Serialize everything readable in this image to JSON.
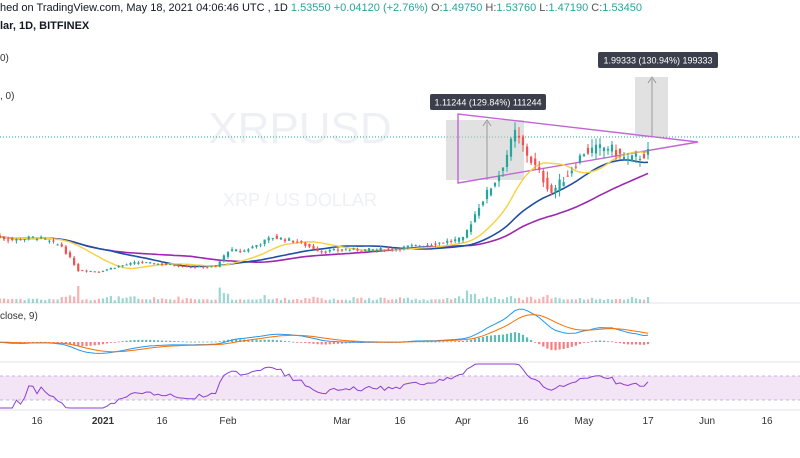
{
  "header": {
    "published": "hed on TradingView.com, May 18, 2021 04:06:46 UTC",
    "ohlc": {
      "close_value": "1.53550",
      "change": "+0.04120 (+2.76%)",
      "o_label": "O:",
      "o_value": "1.49750",
      "h_label": "H:",
      "h_value": "1.53760",
      "l_label": "L:",
      "l_value": "1.47190",
      "c_label": "C:",
      "c_value": "1.53450"
    },
    "symbol_line": "lar, 1D, BITFINEX"
  },
  "indicator_labels": {
    "ma1": "0)",
    "ma2": ", 0)",
    "macd": "close, 9)"
  },
  "watermark": {
    "main": "XRPUSD",
    "sub": "XRP / US DOLLAR"
  },
  "annotations": {
    "measure1": "1.11244 (129.84%) 111244",
    "measure2": "1.99333 (130.94%) 199333"
  },
  "colors": {
    "up": "#26a69a",
    "down": "#ef5350",
    "ma_fast": "#f5d142",
    "ma_mid": "#1e4fa3",
    "ma_slow": "#9c27b0",
    "triangle": "#c266d6",
    "rsi": "#8e3fd0",
    "rsi_band": "#f3e5f5",
    "macd_line": "#2196f3",
    "signal_line": "#ff6d00"
  },
  "chart_data": {
    "type": "candlestick",
    "symbol": "XRPUSD",
    "exchange": "BITFINEX",
    "timeframe": "1D",
    "x_tick_labels": [
      "16",
      "2021",
      "16",
      "Feb",
      "Mar",
      "16",
      "Apr",
      "16",
      "May",
      "17",
      "Jun",
      "16"
    ],
    "price_path": [
      {
        "date": "2020-12-05",
        "price": 0.62
      },
      {
        "date": "2020-12-10",
        "price": 0.57
      },
      {
        "date": "2020-12-16",
        "price": 0.6
      },
      {
        "date": "2020-12-22",
        "price": 0.5
      },
      {
        "date": "2020-12-26",
        "price": 0.23
      },
      {
        "date": "2020-12-31",
        "price": 0.22
      },
      {
        "date": "2021-01-05",
        "price": 0.28
      },
      {
        "date": "2021-01-10",
        "price": 0.32
      },
      {
        "date": "2021-01-16",
        "price": 0.3
      },
      {
        "date": "2021-01-23",
        "price": 0.27
      },
      {
        "date": "2021-01-29",
        "price": 0.27
      },
      {
        "date": "2021-02-01",
        "price": 0.45
      },
      {
        "date": "2021-02-05",
        "price": 0.45
      },
      {
        "date": "2021-02-12",
        "price": 0.6
      },
      {
        "date": "2021-02-18",
        "price": 0.55
      },
      {
        "date": "2021-02-24",
        "price": 0.44
      },
      {
        "date": "2021-03-01",
        "price": 0.46
      },
      {
        "date": "2021-03-10",
        "price": 0.46
      },
      {
        "date": "2021-03-16",
        "price": 0.48
      },
      {
        "date": "2021-03-23",
        "price": 0.52
      },
      {
        "date": "2021-03-29",
        "price": 0.56
      },
      {
        "date": "2021-04-01",
        "price": 0.58
      },
      {
        "date": "2021-04-05",
        "price": 0.95
      },
      {
        "date": "2021-04-10",
        "price": 1.3
      },
      {
        "date": "2021-04-14",
        "price": 1.75
      },
      {
        "date": "2021-04-18",
        "price": 1.45
      },
      {
        "date": "2021-04-23",
        "price": 1.1
      },
      {
        "date": "2021-04-27",
        "price": 1.3
      },
      {
        "date": "2021-05-01",
        "price": 1.55
      },
      {
        "date": "2021-05-07",
        "price": 1.6
      },
      {
        "date": "2021-05-12",
        "price": 1.45
      },
      {
        "date": "2021-05-17",
        "price": 1.535
      }
    ],
    "measurements": [
      {
        "label": "1.11244 (129.84%) 111244",
        "change": 1.11244,
        "percent": 129.84
      },
      {
        "label": "1.99333 (130.94%) 199333",
        "change": 1.99333,
        "percent": 130.94
      }
    ],
    "indicators": [
      "moving average (fast)",
      "moving average (mid)",
      "moving average (slow)",
      "volume",
      "MACD",
      "RSI"
    ]
  }
}
